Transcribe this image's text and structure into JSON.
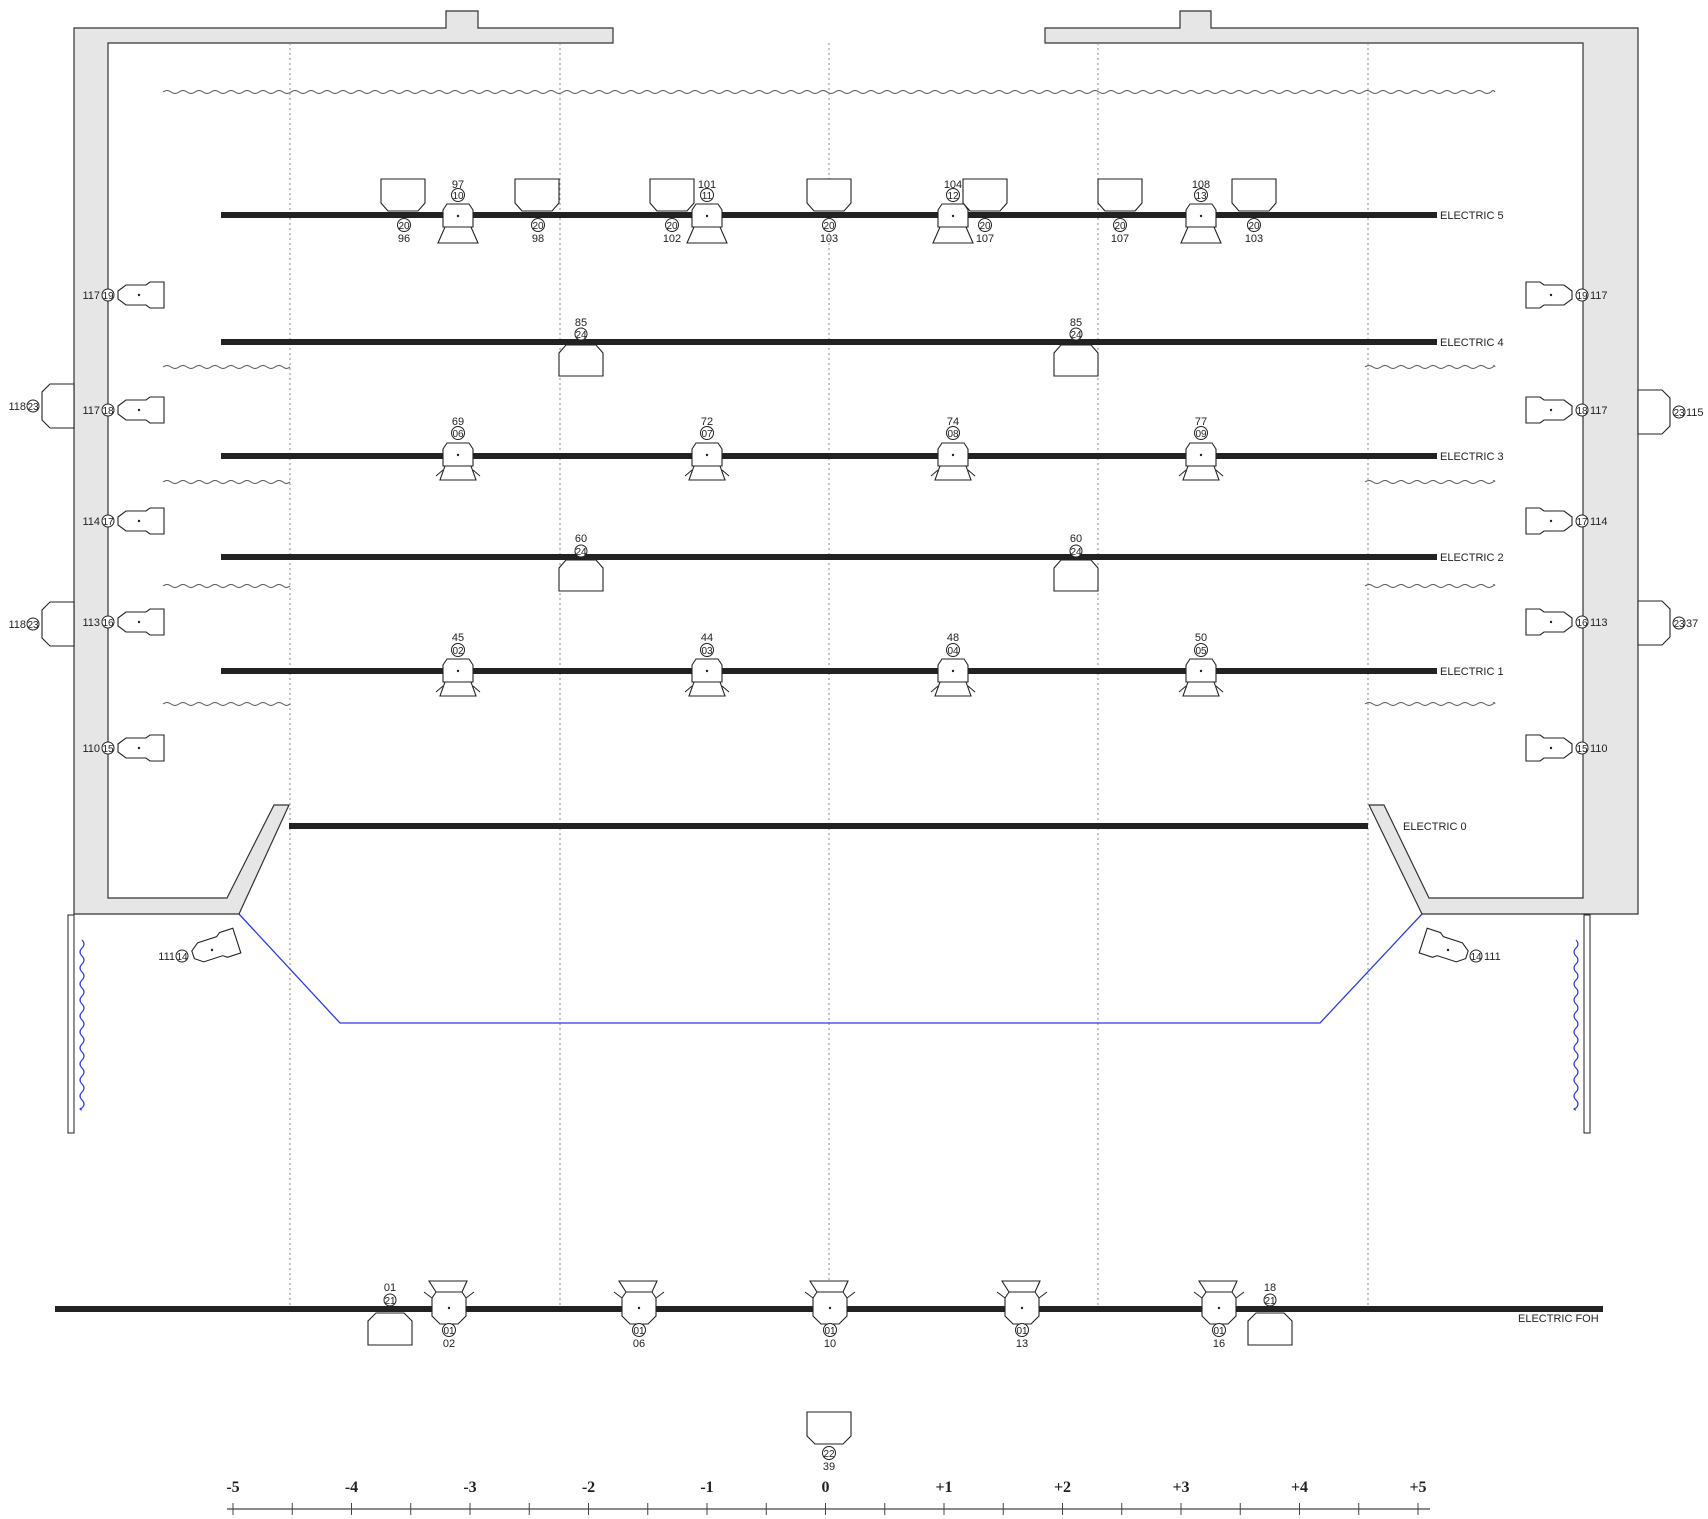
{
  "colors": {
    "wall_fill": "#e6e6e6",
    "pipe": "#222222",
    "sightline": "#2b3fd6",
    "line": "#222222"
  },
  "pipes": [
    {
      "label": "ELECTRIC 5"
    },
    {
      "label": "ELECTRIC 4"
    },
    {
      "label": "ELECTRIC 3"
    },
    {
      "label": "ELECTRIC 2"
    },
    {
      "label": "ELECTRIC 1"
    },
    {
      "label": "ELECTRIC 0"
    },
    {
      "label": "ELECTRIC FOH"
    }
  ],
  "electric5": {
    "pars": [
      {
        "ch": "97",
        "type": "10"
      },
      {
        "ch": "101",
        "type": "11"
      },
      {
        "ch": "104",
        "type": "12"
      },
      {
        "ch": "108",
        "type": "13"
      }
    ],
    "floods": [
      {
        "type": "20",
        "ch": "96"
      },
      {
        "type": "20",
        "ch": "98"
      },
      {
        "type": "20",
        "ch": "102"
      },
      {
        "type": "20",
        "ch": "103"
      },
      {
        "type": "20",
        "ch": "107"
      },
      {
        "type": "20",
        "ch": "107"
      },
      {
        "type": "20",
        "ch": "103"
      }
    ]
  },
  "electric4": {
    "units": [
      {
        "ch": "85",
        "type": "24"
      },
      {
        "ch": "85",
        "type": "24"
      }
    ]
  },
  "electric3": {
    "units": [
      {
        "ch": "69",
        "type": "06"
      },
      {
        "ch": "72",
        "type": "07"
      },
      {
        "ch": "74",
        "type": "08"
      },
      {
        "ch": "77",
        "type": "09"
      }
    ]
  },
  "electric2": {
    "units": [
      {
        "ch": "60",
        "type": "24"
      },
      {
        "ch": "60",
        "type": "24"
      }
    ]
  },
  "electric1": {
    "units": [
      {
        "ch": "45",
        "type": "02"
      },
      {
        "ch": "44",
        "type": "03"
      },
      {
        "ch": "48",
        "type": "04"
      },
      {
        "ch": "50",
        "type": "05"
      }
    ]
  },
  "booms_left": [
    {
      "ch": "117",
      "type": "19"
    },
    {
      "ch": "117",
      "type": "18"
    },
    {
      "ch": "114",
      "type": "17"
    },
    {
      "ch": "113",
      "type": "16"
    },
    {
      "ch": "110",
      "type": "15"
    }
  ],
  "booms_right": [
    {
      "ch": "117",
      "type": "19"
    },
    {
      "ch": "117",
      "type": "18"
    },
    {
      "ch": "114",
      "type": "17"
    },
    {
      "ch": "113",
      "type": "16"
    },
    {
      "ch": "110",
      "type": "15"
    }
  ],
  "sides_left": [
    {
      "ch": "118",
      "type": "23"
    },
    {
      "ch": "118",
      "type": "23"
    }
  ],
  "sides_right": [
    {
      "ch": "115",
      "type": "23"
    },
    {
      "ch": "37",
      "type": "23"
    }
  ],
  "proscenium": {
    "left": {
      "ch": "111",
      "type": "14"
    },
    "right": {
      "ch": "111",
      "type": "14"
    }
  },
  "foh": {
    "wash_left": {
      "ch": "01",
      "type": "21"
    },
    "wash_right": {
      "ch": "18",
      "type": "21"
    },
    "units": [
      {
        "type": "01",
        "ch": "02"
      },
      {
        "type": "01",
        "ch": "06"
      },
      {
        "type": "01",
        "ch": "10"
      },
      {
        "type": "01",
        "ch": "13"
      },
      {
        "type": "01",
        "ch": "16"
      }
    ]
  },
  "floor_unit": {
    "type": "22",
    "ch": "39"
  },
  "scale": {
    "labels": [
      "-5",
      "-4",
      "-3",
      "-2",
      "-1",
      "0",
      "+1",
      "+2",
      "+3",
      "+4",
      "+5"
    ]
  }
}
